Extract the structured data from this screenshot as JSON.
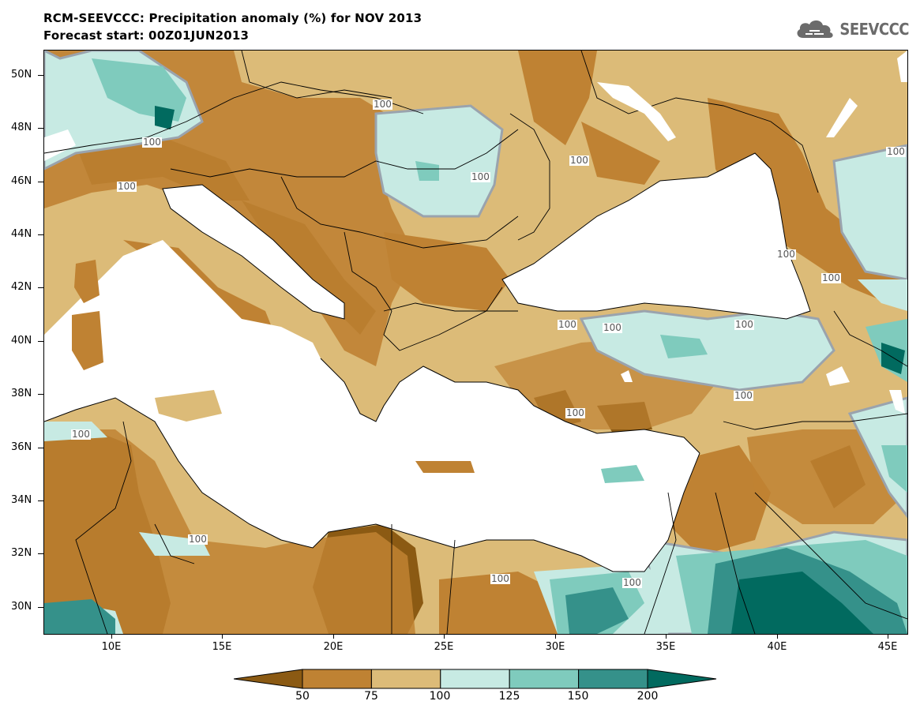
{
  "title": {
    "line1": "RCM-SEEVCCC: Precipitation anomaly (%) for NOV 2013",
    "line2": "Forecast start: 00Z01JUN2013"
  },
  "logo": {
    "text": "SEEVCCC",
    "icon": "cloud-icon"
  },
  "map": {
    "lat_labels": [
      "50N",
      "48N",
      "46N",
      "44N",
      "42N",
      "40N",
      "38N",
      "36N",
      "34N",
      "32N",
      "30N"
    ],
    "lon_labels": [
      "10E",
      "15E",
      "20E",
      "25E",
      "30E",
      "35E",
      "40E",
      "45E"
    ],
    "lon_range": [
      7,
      45.8
    ],
    "lat_range": [
      29,
      51
    ],
    "contour_labels": [
      "100",
      "100",
      "100",
      "100",
      "100",
      "100",
      "100",
      "100",
      "100",
      "100",
      "100",
      "100",
      "100",
      "100",
      "100",
      "100",
      "100"
    ],
    "shading": {
      "lt50": "#8b5a13",
      "50_75": "#bf8233",
      "75_100": "#dcbb78",
      "100_125": "#c7eae3",
      "125_150": "#7fcbbd",
      "150_200": "#35918a",
      "gt200": "#016a5f",
      "sea": "#ffffff",
      "contour_100": "#9aa3ad"
    }
  },
  "colorbar": {
    "labels": [
      "50",
      "75",
      "100",
      "125",
      "150",
      "200"
    ],
    "colors": [
      "#8b5a13",
      "#bf8233",
      "#dcbb78",
      "#c7eae3",
      "#7fcbbd",
      "#35918a",
      "#016a5f"
    ]
  }
}
